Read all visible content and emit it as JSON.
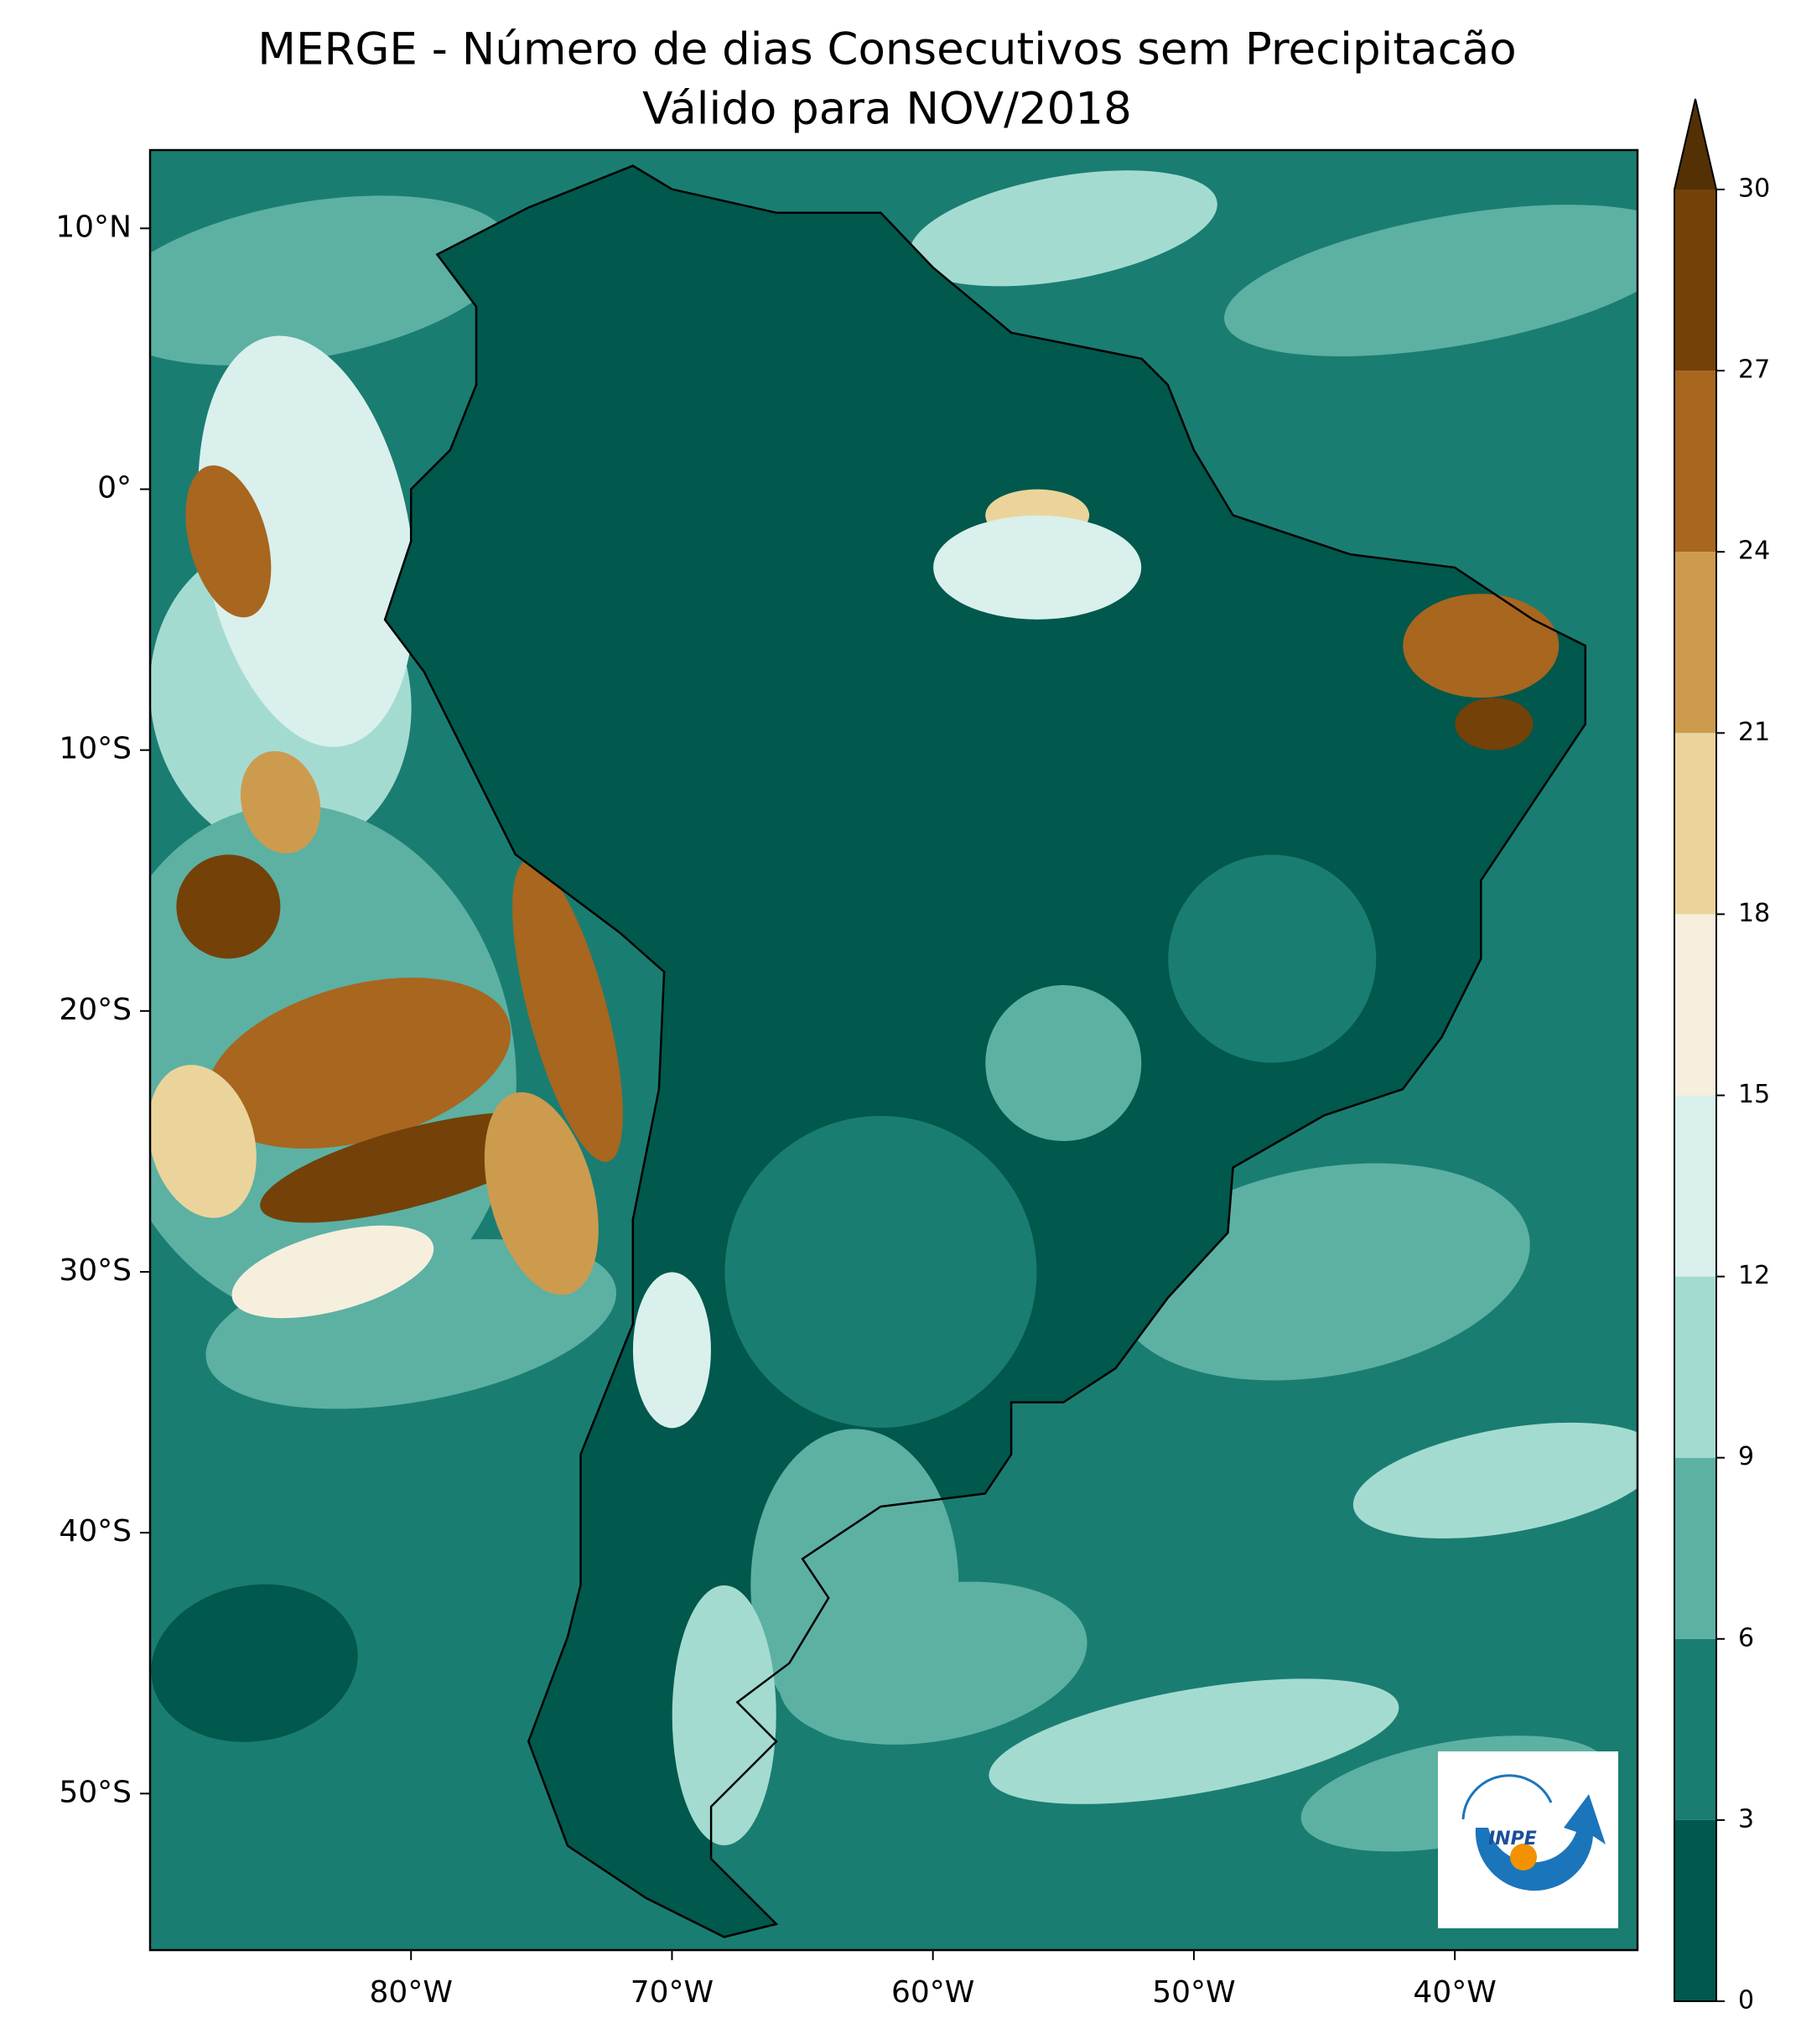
{
  "map": {
    "title": "MERGE - Número de dias Consecutivos sem Precipitacão",
    "subtitle": "Válido para NOV/2018",
    "lon_range": [
      -90,
      -33
    ],
    "lat_range": [
      -56,
      13
    ],
    "lat_ticks": [
      {
        "value": 10,
        "label": "10°N"
      },
      {
        "value": 0,
        "label": "0°"
      },
      {
        "value": -10,
        "label": "10°S"
      },
      {
        "value": -20,
        "label": "20°S"
      },
      {
        "value": -30,
        "label": "30°S"
      },
      {
        "value": -40,
        "label": "40°S"
      },
      {
        "value": -50,
        "label": "50°S"
      }
    ],
    "lon_ticks": [
      {
        "value": -80,
        "label": "80°W"
      },
      {
        "value": -70,
        "label": "70°W"
      },
      {
        "value": -60,
        "label": "60°W"
      },
      {
        "value": -50,
        "label": "50°W"
      },
      {
        "value": -40,
        "label": "40°W"
      }
    ],
    "colorbar": {
      "levels": [
        0,
        3,
        6,
        9,
        12,
        15,
        18,
        21,
        24,
        27,
        30
      ],
      "colors": [
        "#01584c",
        "#1a7d72",
        "#5cb1a3",
        "#a4dbd0",
        "#d9f0ec",
        "#f6efdd",
        "#ebd49b",
        "#cd9b4e",
        "#a8661f",
        "#744109"
      ],
      "extend_color": "#543005"
    },
    "logo_text": "INPE"
  }
}
